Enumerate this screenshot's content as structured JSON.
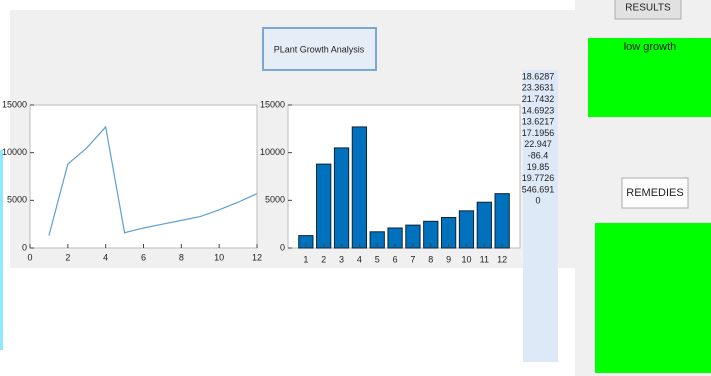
{
  "ui": {
    "title_button": "PLant Growth Analysis",
    "results_button": "RESULTS",
    "result_text": "low growth",
    "remedies_button": "REMEDIES",
    "listbox": [
      "18.6287",
      "23.3631",
      "21.7432",
      "14.6923",
      "13.6217",
      "17.1956",
      "22.947",
      "-86.4",
      "19.85",
      "19.7726",
      "546.691",
      "0"
    ]
  },
  "chart_data": [
    {
      "type": "line",
      "color": "#5b9fd6",
      "x": [
        1,
        2,
        3,
        4,
        5,
        6,
        7,
        8,
        9,
        10,
        11,
        12
      ],
      "values": [
        1300,
        8800,
        10500,
        12700,
        1600,
        2100,
        2500,
        2900,
        3300,
        4000,
        4800,
        5700
      ],
      "xlim": [
        0,
        12
      ],
      "xticks": [
        0,
        2,
        4,
        6,
        8,
        10,
        12
      ],
      "ylim": [
        0,
        15000
      ],
      "yticks": [
        0,
        5000,
        10000,
        15000
      ]
    },
    {
      "type": "bar",
      "color": "#0072bd",
      "categories": [
        "1",
        "2",
        "3",
        "4",
        "5",
        "6",
        "7",
        "8",
        "9",
        "10",
        "11",
        "12"
      ],
      "values": [
        1300,
        8800,
        10500,
        12700,
        1700,
        2100,
        2400,
        2800,
        3200,
        3900,
        4800,
        5700
      ],
      "ylim": [
        0,
        15000
      ],
      "yticks": [
        0,
        5000,
        10000,
        15000
      ]
    }
  ]
}
